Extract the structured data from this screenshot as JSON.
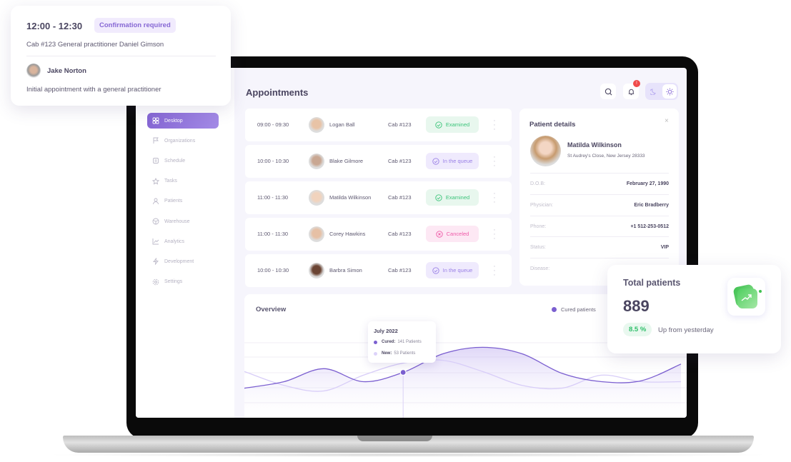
{
  "popup": {
    "time": "12:00 - 12:30",
    "badge": "Confirmation required",
    "details": "Cab #123  General practitioner Daniel Gimson",
    "patient": "Jake Norton",
    "description": "Initial appointment with a general practitioner"
  },
  "sidebar": {
    "items": [
      {
        "label": "Desktop",
        "icon": "grid-icon",
        "active": true
      },
      {
        "label": "Organizations",
        "icon": "flag-icon"
      },
      {
        "label": "Schedule",
        "icon": "calendar-icon"
      },
      {
        "label": "Tasks",
        "icon": "star-icon"
      },
      {
        "label": "Patients",
        "icon": "user-icon"
      },
      {
        "label": "Warehouse",
        "icon": "box-icon"
      },
      {
        "label": "Analytics",
        "icon": "chart-icon"
      },
      {
        "label": "Development",
        "icon": "bolt-icon"
      },
      {
        "label": "Settings",
        "icon": "gear-icon"
      }
    ]
  },
  "header": {
    "title": "Appointments",
    "notification_count": "!"
  },
  "appointments": [
    {
      "time": "09:00 - 09:30",
      "name": "Logan Ball",
      "cab": "Cab #123",
      "status": "Examined"
    },
    {
      "time": "10:00 - 10:30",
      "name": "Blake Gilmore",
      "cab": "Cab #123",
      "status": "In the queue"
    },
    {
      "time": "11:00 - 11:30",
      "name": "Matilda Wilkinson",
      "cab": "Cab #123",
      "status": "Examined"
    },
    {
      "time": "11:00 - 11:30",
      "name": "Corey Hawkins",
      "cab": "Cab #123",
      "status": "Canceled"
    },
    {
      "time": "10:00 - 10:30",
      "name": "Barbra Simon",
      "cab": "Cab #123",
      "status": "In the queue"
    }
  ],
  "status_colors": {
    "Examined": {
      "bg": "#e8f7ee",
      "fg": "#3cc47a"
    },
    "In the queue": {
      "bg": "#efeafd",
      "fg": "#9a80e6"
    },
    "Canceled": {
      "bg": "#fde8f4",
      "fg": "#ef5aa8"
    }
  },
  "patient_details": {
    "title": "Patient details",
    "name": "Matilda Wilkinson",
    "address": "St Audrey's Close, New Jersey 28333",
    "fields": [
      {
        "label": "D.O.B:",
        "value": "February 27, 1990"
      },
      {
        "label": "Physician:",
        "value": "Eric Bradberry"
      },
      {
        "label": "Phone:",
        "value": "+1 512-253-0512"
      },
      {
        "label": "Status:",
        "value": "VIP"
      },
      {
        "label": "Disease:",
        "value": ""
      }
    ]
  },
  "overview": {
    "title": "Overview",
    "legend": "Cured patients",
    "tooltip": {
      "title": "July 2022",
      "cured_label": "Cured:",
      "cured_value": "141 Patients",
      "new_label": "New:",
      "new_value": "53 Patients"
    }
  },
  "chart_data": {
    "type": "area",
    "ylim": [
      0,
      100
    ],
    "grid": true,
    "legend": "top-right",
    "highlight_index": 4,
    "series": [
      {
        "name": "Cured patients",
        "color": "#7b5fd0",
        "values": [
          28,
          35,
          49,
          35,
          45,
          65,
          72,
          65,
          44,
          35,
          36,
          54
        ]
      },
      {
        "color": "#d8cdf8",
        "values": [
          46,
          31,
          25,
          42,
          55,
          58,
          46,
          31,
          28,
          42,
          35,
          35
        ]
      }
    ]
  },
  "total": {
    "title": "Total patients",
    "value": "889",
    "change": "8.5 %",
    "change_text": "Up from yesterday"
  }
}
